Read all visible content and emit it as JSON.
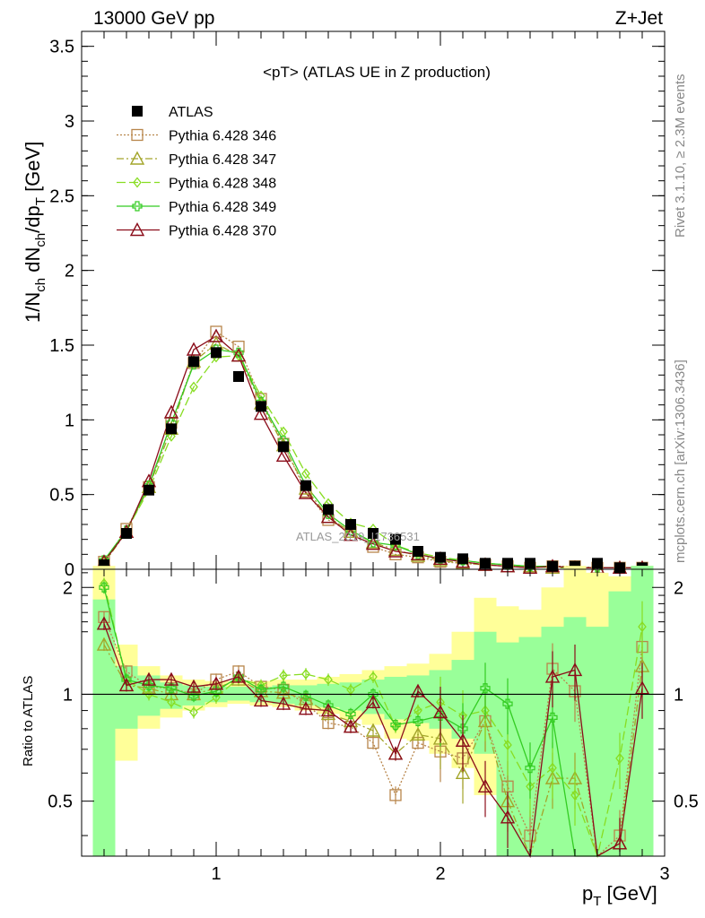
{
  "header": {
    "energy_label": "13000 GeV pp",
    "process_label": "Z+Jet",
    "side_label": "Rivet 3.1.10, ≥ 2.3M events",
    "side_label2": "mcplots.cern.ch [arXiv:1306.3436]",
    "watermark": "ATLAS_2019_I1736531"
  },
  "chart_data": [
    {
      "type": "scatter",
      "title": "<pT> (ATLAS UE in Z production)",
      "xlabel": "p_T [GeV]",
      "ylabel": "1/N_ch dN_ch/dp_T [GeV]",
      "xlim": [
        0.4,
        3.0
      ],
      "ylim": [
        0,
        3.6
      ],
      "yticks": [
        "0",
        "0.5",
        "1",
        "1.5",
        "2",
        "2.5",
        "3",
        "3.5"
      ],
      "legend_position": "top-left",
      "x": [
        0.5,
        0.6,
        0.7,
        0.8,
        0.9,
        1.0,
        1.1,
        1.2,
        1.3,
        1.4,
        1.5,
        1.6,
        1.7,
        1.8,
        1.9,
        2.0,
        2.1,
        2.2,
        2.3,
        2.4,
        2.5,
        2.6,
        2.7,
        2.8,
        2.9
      ],
      "series": [
        {
          "name": "ATLAS",
          "color": "#000000",
          "marker": "filled-square",
          "line": "none",
          "values": [
            0.03,
            0.24,
            0.53,
            0.94,
            1.39,
            1.45,
            1.29,
            1.09,
            0.82,
            0.56,
            0.4,
            0.3,
            0.24,
            0.2,
            0.12,
            0.08,
            0.07,
            0.04,
            0.04,
            0.04,
            0.02,
            0.02,
            0.04,
            0.01,
            0.01
          ]
        },
        {
          "name": "Pythia 6.428 346",
          "color": "#B8864B",
          "marker": "open-square",
          "line": "dotted",
          "values": [
            0.05,
            0.27,
            0.55,
            0.98,
            1.38,
            1.59,
            1.49,
            1.14,
            0.84,
            0.52,
            0.33,
            0.25,
            0.15,
            0.1,
            0.08,
            0.05,
            0.04,
            0.03,
            0.02,
            0.01,
            0.02,
            0.02,
            0.01,
            0.01,
            0.01
          ]
        },
        {
          "name": "Pythia 6.428 347",
          "color": "#A3A52A",
          "marker": "open-triangle",
          "line": "dashdot",
          "values": [
            0.04,
            0.25,
            0.55,
            0.94,
            1.39,
            1.51,
            1.43,
            1.11,
            0.83,
            0.54,
            0.35,
            0.25,
            0.18,
            0.13,
            0.09,
            0.06,
            0.04,
            0.03,
            0.02,
            0.02,
            0.01,
            0.01,
            0.01,
            0.01,
            0.01
          ]
        },
        {
          "name": "Pythia 6.428 348",
          "color": "#88DD22",
          "marker": "open-diamond",
          "line": "longdash",
          "values": [
            0.06,
            0.26,
            0.53,
            0.89,
            1.22,
            1.42,
            1.43,
            1.16,
            0.92,
            0.64,
            0.44,
            0.31,
            0.27,
            0.16,
            0.11,
            0.08,
            0.06,
            0.04,
            0.03,
            0.02,
            0.01,
            0.01,
            0.01,
            0.01,
            0.01
          ]
        },
        {
          "name": "Pythia 6.428 349",
          "color": "#33CC22",
          "marker": "open-cross",
          "line": "solid",
          "values": [
            0.06,
            0.26,
            0.56,
            0.98,
            1.37,
            1.47,
            1.45,
            1.12,
            0.86,
            0.56,
            0.37,
            0.26,
            0.18,
            0.16,
            0.1,
            0.07,
            0.06,
            0.04,
            0.03,
            0.02,
            0.02,
            0.01,
            0.01,
            0.01,
            0.01
          ]
        },
        {
          "name": "Pythia 6.428 370",
          "color": "#8B0D1A",
          "marker": "open-triangle",
          "line": "solid",
          "values": [
            0.05,
            0.25,
            0.59,
            1.05,
            1.47,
            1.56,
            1.43,
            1.04,
            0.76,
            0.51,
            0.35,
            0.23,
            0.17,
            0.12,
            0.1,
            0.07,
            0.05,
            0.03,
            0.02,
            0.01,
            0.02,
            0.01,
            0.01,
            0.01,
            0.01
          ]
        }
      ]
    },
    {
      "type": "line",
      "ylabel": "Ratio to ATLAS",
      "xlim": [
        0.4,
        3.0
      ],
      "ylim": [
        0.35,
        2.25
      ],
      "xticks": [
        "1",
        "2",
        "3"
      ],
      "yticks": [
        "0.5",
        "1",
        "2"
      ],
      "reference_line": 1,
      "x": [
        0.5,
        0.6,
        0.7,
        0.8,
        0.9,
        1.0,
        1.1,
        1.2,
        1.3,
        1.4,
        1.5,
        1.6,
        1.7,
        1.8,
        1.9,
        2.0,
        2.1,
        2.2,
        2.3,
        2.4,
        2.5,
        2.6,
        2.7,
        2.8,
        2.9
      ],
      "bands": {
        "x_edges": [
          0.45,
          0.55,
          0.65,
          0.75,
          0.85,
          0.95,
          1.05,
          1.15,
          1.25,
          1.35,
          1.45,
          1.55,
          1.65,
          1.75,
          1.85,
          1.95,
          2.05,
          2.15,
          2.25,
          2.35,
          2.45,
          2.55,
          2.65,
          2.75,
          2.85,
          2.95
        ],
        "yellow": {
          "color": "#FFFF99",
          "low": [
            0.3,
            0.65,
            0.8,
            0.86,
            0.9,
            0.92,
            0.94,
            0.93,
            0.92,
            0.9,
            0.88,
            0.85,
            0.82,
            0.75,
            0.74,
            0.68,
            0.62,
            0.52,
            0.35,
            0.35,
            0.35,
            0.35,
            0.35,
            0.35,
            0.35
          ],
          "high": [
            2.3,
            1.38,
            1.2,
            1.13,
            1.1,
            1.09,
            1.09,
            1.09,
            1.1,
            1.1,
            1.12,
            1.14,
            1.17,
            1.2,
            1.22,
            1.3,
            1.5,
            1.87,
            1.77,
            1.73,
            2.0,
            2.3,
            2.2,
            2.15,
            2.3
          ]
        },
        "green": {
          "color": "#99FF99",
          "low": [
            0.35,
            0.8,
            0.87,
            0.91,
            0.93,
            0.95,
            0.96,
            0.95,
            0.94,
            0.93,
            0.92,
            0.9,
            0.88,
            0.85,
            0.83,
            0.8,
            0.75,
            0.68,
            0.35,
            0.35,
            0.35,
            0.35,
            0.35,
            0.35,
            0.35
          ],
          "high": [
            1.85,
            1.2,
            1.13,
            1.08,
            1.06,
            1.05,
            1.05,
            1.05,
            1.06,
            1.06,
            1.07,
            1.08,
            1.1,
            1.12,
            1.13,
            1.17,
            1.25,
            1.5,
            1.4,
            1.45,
            1.55,
            1.65,
            1.55,
            1.95,
            2.3
          ]
        }
      },
      "series": [
        {
          "name": "Pythia 6.428 346",
          "color": "#B8864B",
          "values": [
            1.65,
            1.16,
            1.05,
            1.04,
            1.0,
            1.1,
            1.16,
            1.05,
            1.03,
            0.94,
            0.83,
            0.81,
            0.73,
            0.52,
            0.73,
            0.69,
            0.66,
            0.84,
            0.55,
            0.4,
            1.18,
            1.02,
            0.33,
            0.4,
            1.36
          ]
        },
        {
          "name": "Pythia 6.428 347",
          "color": "#A3A52A",
          "values": [
            1.38,
            1.06,
            1.04,
            1.0,
            1.0,
            1.04,
            1.1,
            1.02,
            1.01,
            0.97,
            0.88,
            0.84,
            0.79,
            0.68,
            0.77,
            0.75,
            0.6,
            0.84,
            0.5,
            0.33,
            0.58,
            0.58,
            0.33,
            0.38,
            1.2
          ]
        },
        {
          "name": "Pythia 6.428 348",
          "color": "#88DD22",
          "values": [
            2.05,
            1.1,
            1.0,
            0.95,
            0.89,
            0.98,
            1.11,
            1.06,
            1.13,
            1.14,
            1.1,
            1.03,
            1.12,
            0.81,
            0.9,
            0.95,
            0.87,
            0.9,
            0.72,
            0.55,
            0.62,
            0.52,
            0.33,
            0.66,
            1.55
          ]
        },
        {
          "name": "Pythia 6.428 349",
          "color": "#33CC22",
          "values": [
            2.0,
            1.1,
            1.06,
            1.04,
            0.99,
            1.02,
            1.12,
            1.03,
            1.05,
            0.99,
            0.93,
            0.88,
            1.0,
            0.82,
            0.84,
            0.87,
            0.8,
            1.04,
            0.94,
            0.62,
            0.86,
            0.33,
            0.33,
            0.33,
            0.33
          ]
        },
        {
          "name": "Pythia 6.428 370",
          "color": "#8B0D1A",
          "values": [
            1.58,
            1.06,
            1.1,
            1.1,
            1.05,
            1.07,
            1.12,
            0.96,
            0.94,
            0.91,
            0.9,
            0.81,
            0.95,
            0.68,
            1.02,
            0.89,
            0.74,
            0.55,
            0.45,
            0.33,
            1.12,
            1.17,
            0.33,
            0.38,
            1.04
          ]
        }
      ]
    }
  ]
}
